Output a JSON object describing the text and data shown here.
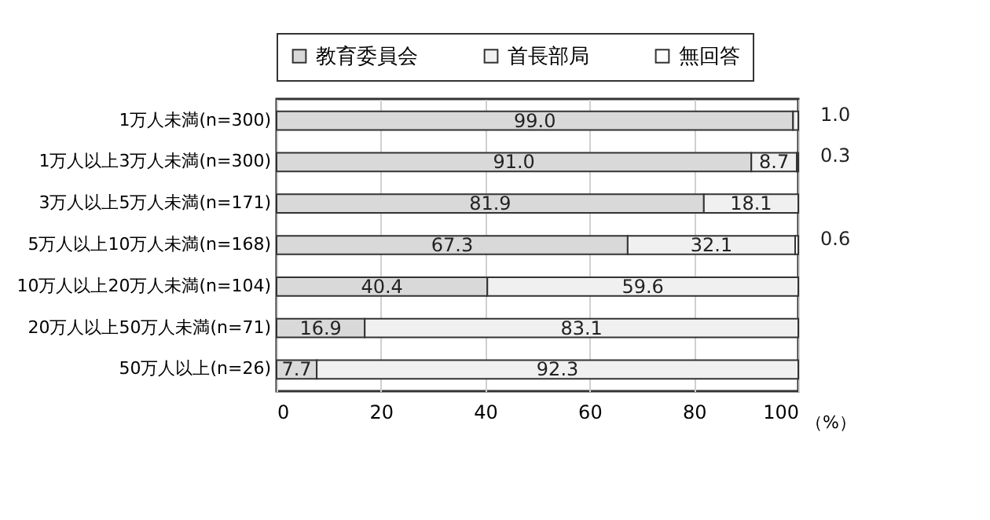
{
  "chart_data": {
    "type": "bar",
    "orientation": "horizontal",
    "stacked": true,
    "categories": [
      "1万人未満(n=300)",
      "1万人以上3万人未満(n=300)",
      "3万人以上5万人未満(n=171)",
      "5万人以上10万人未満(n=168)",
      "10万人以上20万人未満(n=104)",
      "20万人以上50万人未満(n=71)",
      "50万人以上(n=26)"
    ],
    "series": [
      {
        "name": "教育委員会",
        "color": "#d9d9d9",
        "values": [
          99.0,
          91.0,
          81.9,
          67.3,
          40.4,
          16.9,
          7.7
        ],
        "value_labels": [
          "99.0",
          "91.0",
          "81.9",
          "67.3",
          "40.4",
          "16.9",
          "7.7"
        ]
      },
      {
        "name": "首長部局",
        "color": "#f0f0f0",
        "values": [
          1.0,
          8.7,
          18.1,
          32.1,
          59.6,
          83.1,
          92.3
        ],
        "value_labels": [
          "1.0",
          "8.7",
          "18.1",
          "32.1",
          "59.6",
          "83.1",
          "92.3"
        ]
      },
      {
        "name": "無回答",
        "color": "#ffffff",
        "values": [
          null,
          0.3,
          null,
          0.6,
          null,
          null,
          null
        ],
        "value_labels": [
          null,
          "0.3",
          null,
          "0.6",
          null,
          null,
          null
        ]
      }
    ],
    "xlabel": "（%）",
    "xlim": [
      0,
      100
    ],
    "xticks": [
      0,
      20,
      40,
      60,
      80,
      100
    ],
    "grid": "x",
    "legend": "top"
  }
}
